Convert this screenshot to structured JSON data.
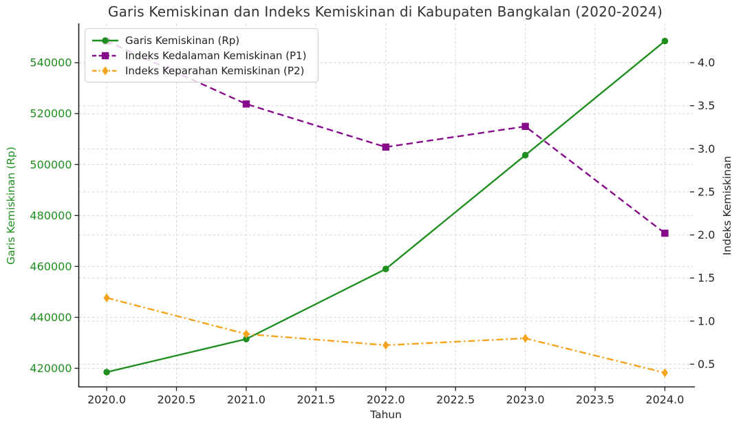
{
  "chart_data": {
    "type": "line",
    "title": "Garis Kemiskinan dan Indeks Kemiskinan di Kabupaten Bangkalan (2020-2024)",
    "xlabel": "Tahun",
    "x": [
      2020,
      2021,
      2022,
      2023,
      2024
    ],
    "x_tick_labels": [
      "2020.0",
      "2020.5",
      "2021.0",
      "2021.5",
      "2022.0",
      "2022.5",
      "2023.0",
      "2023.5",
      "2024.0"
    ],
    "x_range": [
      2019.8,
      2024.2
    ],
    "grid": true,
    "grid_style": "dashed",
    "legend_position": "upper left",
    "left_axis": {
      "label": "Garis Kemiskinan (Rp)",
      "color": "#1e8e1e",
      "ticks": [
        420000,
        440000,
        460000,
        480000,
        500000,
        520000,
        540000
      ],
      "range": [
        412700,
        554900
      ]
    },
    "right_axis": {
      "label": "Indeks Kemiskinan",
      "color": "#262626",
      "ticks": [
        0.5,
        1.0,
        1.5,
        2.0,
        2.5,
        3.0,
        3.5,
        4.0
      ],
      "range": [
        0.236,
        4.44
      ]
    },
    "series": [
      {
        "name": "Garis Kemiskinan (Rp)",
        "axis": "left",
        "color": "#1e8e1e",
        "line_style": "solid",
        "marker": "circle",
        "values": [
          418500,
          431500,
          459000,
          503700,
          548500
        ]
      },
      {
        "name": "Indeks Kedalaman Kemiskinan (P1)",
        "axis": "right",
        "color": "#860b8a",
        "line_style": "dashed",
        "marker": "square",
        "values": [
          4.25,
          3.52,
          3.02,
          3.26,
          2.02
        ]
      },
      {
        "name": "Indeks Keparahan Kemiskinan (P2)",
        "axis": "right",
        "color": "#f5a31b",
        "line_style": "dashdot",
        "marker": "diamond",
        "values": [
          1.27,
          0.85,
          0.72,
          0.8,
          0.4
        ]
      }
    ]
  }
}
